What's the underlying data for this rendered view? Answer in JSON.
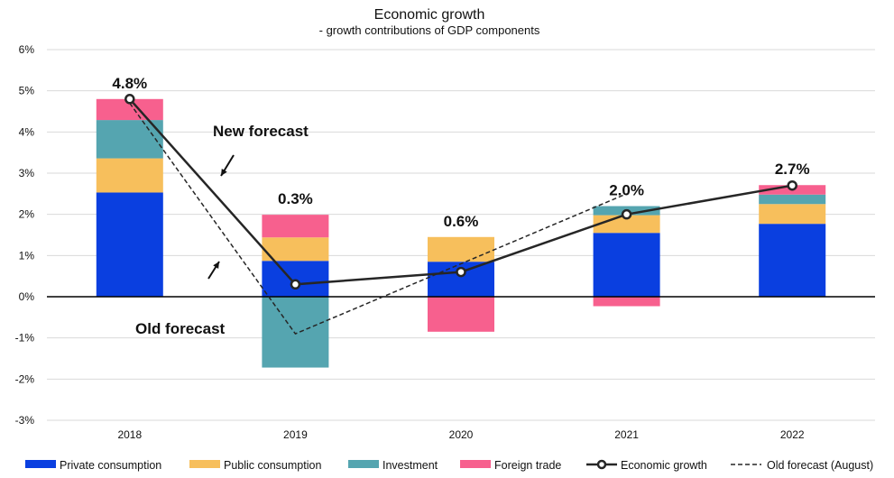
{
  "chart_data": {
    "type": "bar",
    "title": "Economic growth",
    "subtitle": "- growth contributions of GDP components",
    "categories": [
      "2018",
      "2019",
      "2020",
      "2021",
      "2022"
    ],
    "ylim": [
      -3,
      6
    ],
    "yticks": [
      -3,
      -2,
      -1,
      0,
      1,
      2,
      3,
      4,
      5,
      6
    ],
    "ytick_labels": [
      "-3%",
      "-2%",
      "-1%",
      "0%",
      "1%",
      "2%",
      "3%",
      "4%",
      "5%",
      "6%"
    ],
    "grid": true,
    "legend_position": "bottom",
    "series": [
      {
        "name": "Private consumption",
        "kind": "bar",
        "color": "#0A3FE0",
        "values": [
          2.53,
          0.87,
          0.85,
          1.55,
          1.77
        ]
      },
      {
        "name": "Public consumption",
        "kind": "bar",
        "color": "#F7BF5C",
        "values": [
          0.83,
          0.57,
          0.6,
          0.43,
          0.48
        ]
      },
      {
        "name": "Investment",
        "kind": "bar",
        "color": "#55A5B0",
        "values": [
          0.93,
          -1.72,
          0.0,
          0.22,
          0.23
        ]
      },
      {
        "name": "Foreign trade",
        "kind": "bar",
        "color": "#F7608E",
        "values": [
          0.51,
          0.55,
          -0.85,
          -0.23,
          0.23
        ]
      },
      {
        "name": "Economic growth",
        "kind": "line",
        "color": "#262626",
        "values": [
          4.8,
          0.3,
          0.6,
          2.0,
          2.7
        ]
      },
      {
        "name": "Old forecast (August)",
        "kind": "dashed-line",
        "color": "#262626",
        "x": [
          "2018",
          "2019",
          "2021"
        ],
        "values": [
          4.7,
          -0.9,
          2.5
        ]
      }
    ],
    "data_labels": [
      "4.8%",
      "0.3%",
      "0.6%",
      "2.0%",
      "2.7%"
    ],
    "annotations": [
      {
        "text": "New forecast"
      },
      {
        "text": "Old forecast"
      }
    ]
  }
}
